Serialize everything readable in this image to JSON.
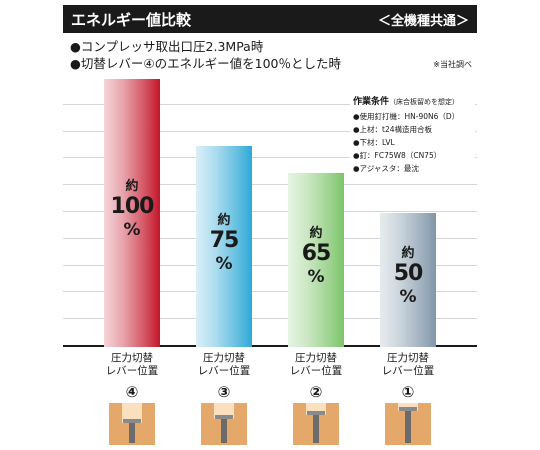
{
  "header": {
    "title": "エネルギー値比較",
    "scope": "＜全機種共通＞"
  },
  "notes": [
    "●コンプレッサ取出口圧2.3MPa時",
    "●切替レバー④のエネルギー値を100％とした時"
  ],
  "survey_note": "※当社調べ",
  "conditions": {
    "title": "作業条件",
    "title_note": "（床合板留めを想定）",
    "items": [
      "●使用釘打機：HN-90N6（D）",
      "●上材：t24構造用合板",
      "●下材：LVL",
      "●釘：FC75W8（CN75）",
      "●アジャスタ：最沈"
    ]
  },
  "chart_data": {
    "type": "bar",
    "title": "エネルギー値比較",
    "xlabel": "",
    "ylabel": "",
    "categories": [
      "圧力切替レバー位置④",
      "圧力切替レバー位置③",
      "圧力切替レバー位置②",
      "圧力切替レバー位置①"
    ],
    "values": [
      100,
      75,
      65,
      50
    ],
    "unit": "%",
    "ylim": [
      0,
      100
    ],
    "grid": true,
    "bar_colors": [
      "#c4162a",
      "#2fa8d6",
      "#7cc46a",
      "#8096a8"
    ],
    "value_labels": [
      {
        "prefix": "約",
        "value": "100",
        "unit": "%"
      },
      {
        "prefix": "約",
        "value": "75",
        "unit": "%"
      },
      {
        "prefix": "約",
        "value": "65",
        "unit": "%"
      },
      {
        "prefix": "約",
        "value": "50",
        "unit": "%"
      }
    ]
  },
  "levers": [
    {
      "label_line1": "圧力切替",
      "label_line2": "レバー位置",
      "number": "④",
      "nail_depth": 1.0
    },
    {
      "label_line1": "圧力切替",
      "label_line2": "レバー位置",
      "number": "③",
      "nail_depth": 0.75
    },
    {
      "label_line1": "圧力切替",
      "label_line2": "レバー位置",
      "number": "②",
      "nail_depth": 0.5
    },
    {
      "label_line1": "圧力切替",
      "label_line2": "レバー位置",
      "number": "①",
      "nail_depth": 0.25
    }
  ]
}
